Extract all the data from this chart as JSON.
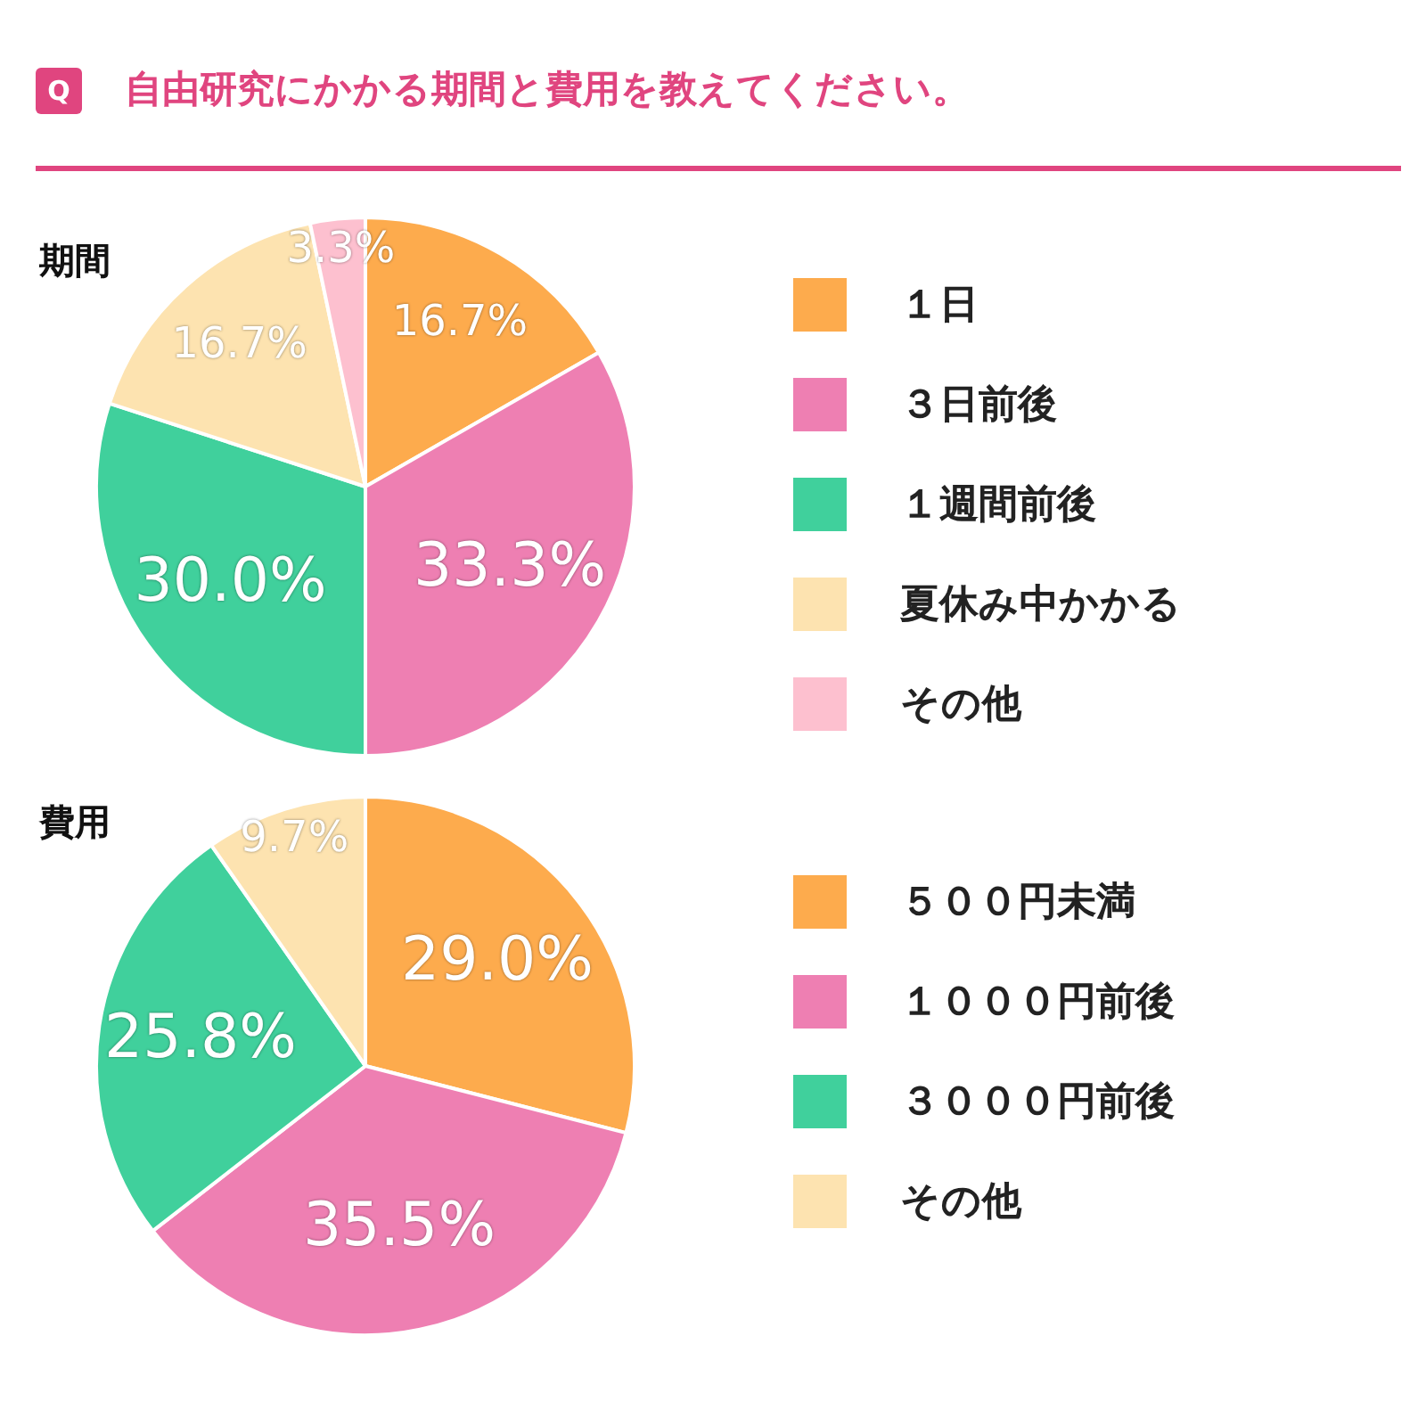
{
  "chart_data": [
    {
      "type": "pie",
      "title": "自由研究にかかる期間と費用を教えてください。",
      "subtitle": "期間",
      "annotations": [
        "Q"
      ],
      "categories": [
        "１日",
        "３日前後",
        "１週間前後",
        "夏休み中かかる",
        "その他"
      ],
      "values": [
        16.7,
        33.3,
        30.0,
        16.7,
        3.3
      ],
      "value_labels": [
        "16.7%",
        "33.3%",
        "30.0%",
        "16.7%",
        "3.3%"
      ],
      "colors": [
        "#fdab4d",
        "#ee7fb2",
        "#40d09c",
        "#fde3b0",
        "#fdc0cf"
      ],
      "legend": "right"
    },
    {
      "type": "pie",
      "title": "費用",
      "categories": [
        "５００円未満",
        "１０００円前後",
        "３０００円前後",
        "その他"
      ],
      "values": [
        29.0,
        35.5,
        25.8,
        9.7
      ],
      "value_labels": [
        "29.0%",
        "35.5%",
        "25.8%",
        "9.7%"
      ],
      "colors": [
        "#fdab4d",
        "#ee7fb2",
        "#40d09c",
        "#fde3b0"
      ],
      "legend": "right"
    }
  ]
}
